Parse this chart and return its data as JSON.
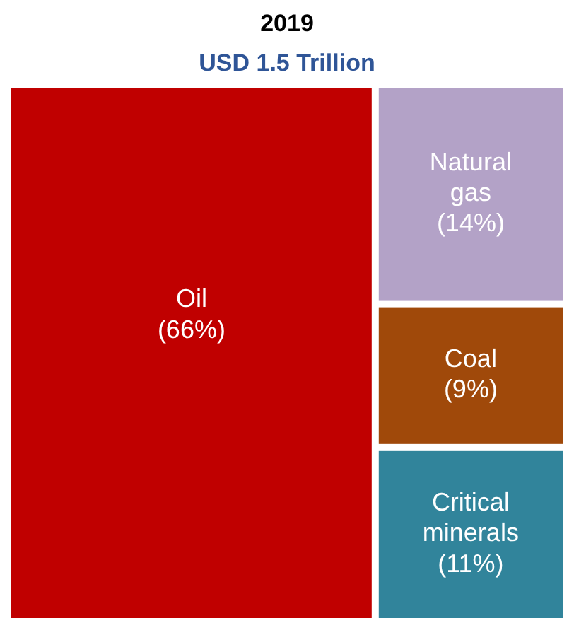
{
  "chart_data": {
    "type": "other",
    "title": "2019",
    "subtitle": "USD 1.5 Trillion",
    "categories": [
      "Oil",
      "Natural gas",
      "Coal",
      "Critical minerals"
    ],
    "values": [
      66,
      14,
      9,
      11
    ],
    "value_labels": [
      "(66%)",
      "(14%)",
      "(9%)",
      "(11%)"
    ],
    "colors": [
      "#c00000",
      "#b3a2c7",
      "#a0490a",
      "#31849b"
    ]
  }
}
